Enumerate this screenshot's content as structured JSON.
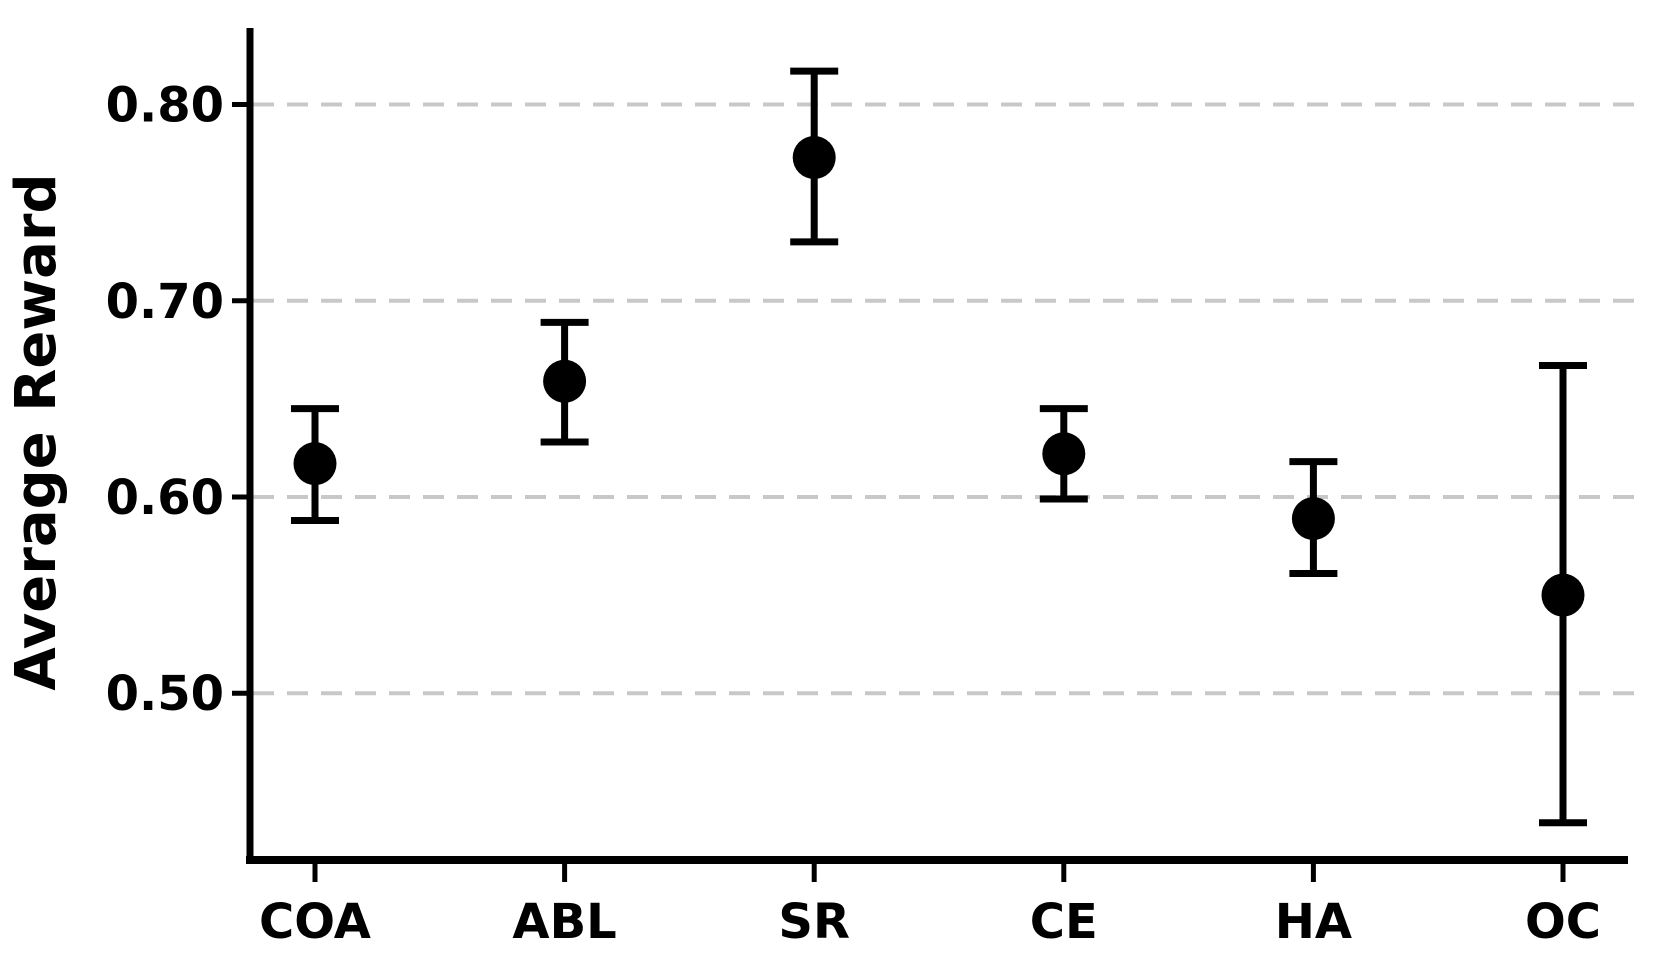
{
  "chart_data": {
    "type": "scatter",
    "subtype": "point-with-error-bars",
    "title": "",
    "xlabel": "",
    "ylabel": "Average Reward",
    "categories": [
      "COA",
      "ABL",
      "SR",
      "CE",
      "HA",
      "OC"
    ],
    "values": [
      0.617,
      0.659,
      0.773,
      0.622,
      0.589,
      0.55
    ],
    "errors_plus": [
      0.028,
      0.03,
      0.044,
      0.023,
      0.029,
      0.117
    ],
    "errors_minus": [
      0.029,
      0.031,
      0.043,
      0.023,
      0.028,
      0.116
    ],
    "yticks": [
      0.5,
      0.6,
      0.7,
      0.8
    ],
    "ytick_labels": [
      "0.50",
      "0.60",
      "0.70",
      "0.80"
    ],
    "ylim": [
      0.415,
      0.839
    ],
    "grid": "horizontal-dashed",
    "legend": "none",
    "marker": "circle",
    "marker_color": "#000000",
    "error_bar_color": "#000000",
    "grid_color": "#c8c8c8",
    "axis_color": "#000000",
    "background_color": "#ffffff"
  }
}
